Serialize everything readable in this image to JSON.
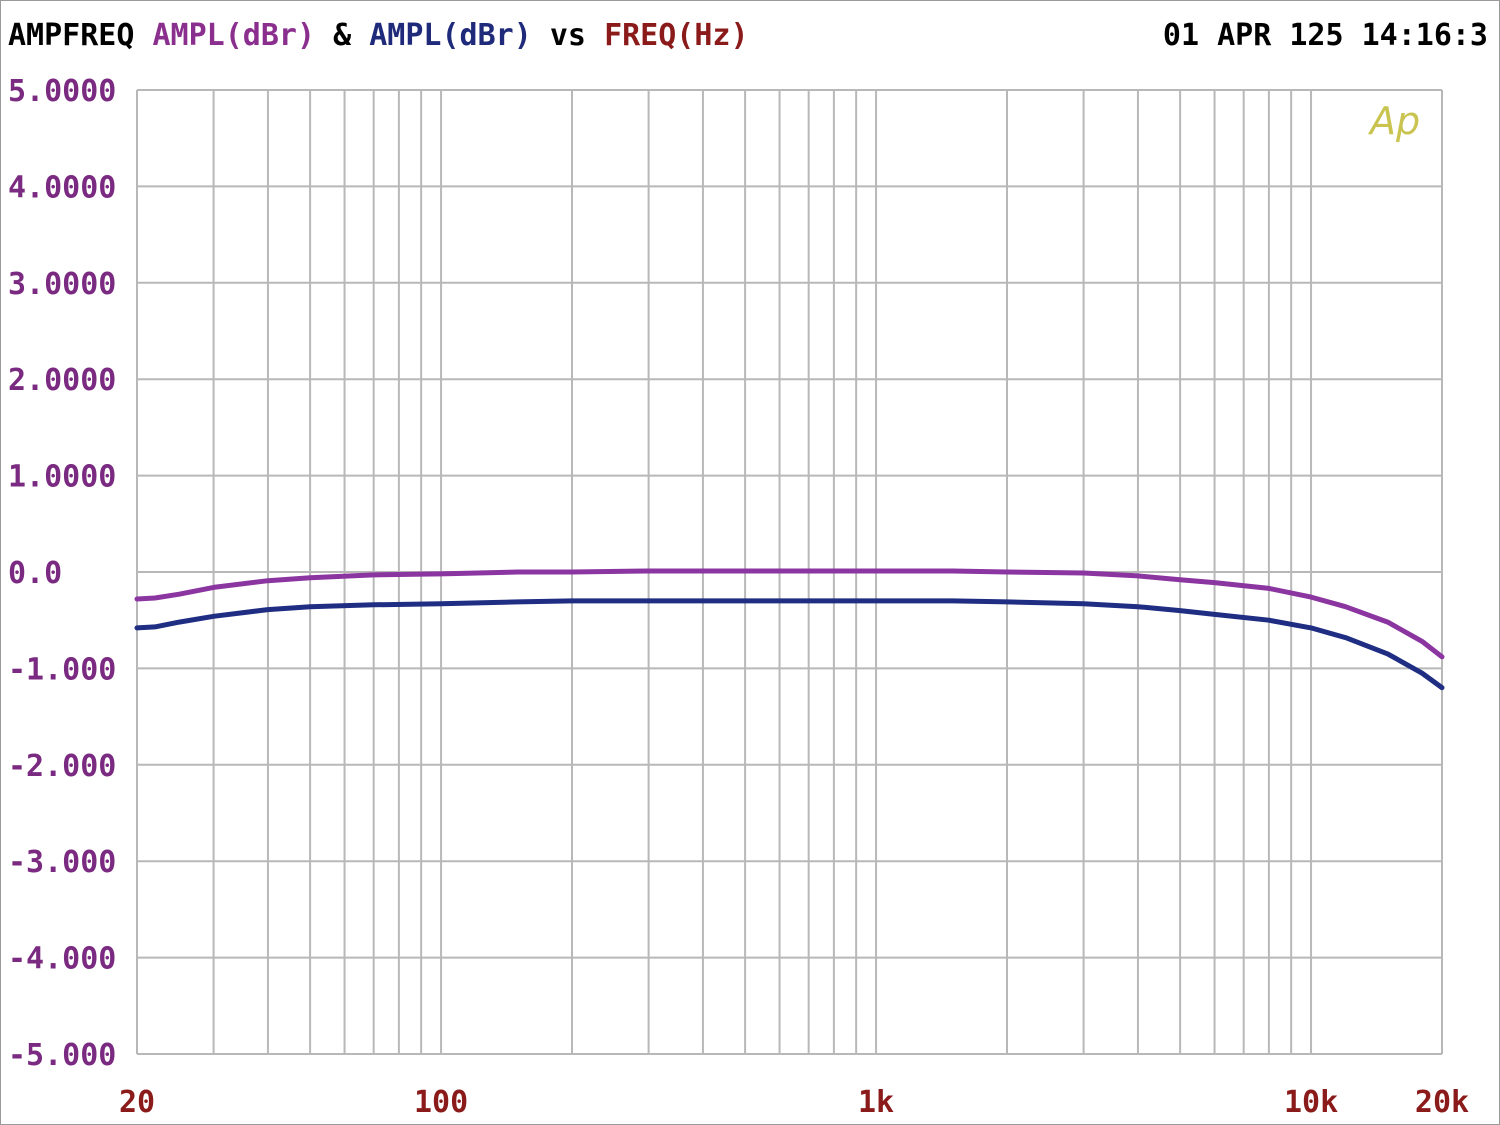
{
  "header": {
    "prefix": "AMPFREQ",
    "ylabel1": "AMPL(dBr)",
    "amp": "&",
    "ylabel2": "AMPL(dBr)",
    "vs": "vs",
    "xlabel": "FREQ(Hz)",
    "timestamp": "01 APR 125 14:16:3"
  },
  "logo": "Ap",
  "colors": {
    "text": "#000000",
    "ylabel1": "#8b2f8f",
    "ylabel2": "#1f2a7a",
    "xlabel": "#8b1a1a",
    "ytick": "#7a2a80",
    "xtick": "#8b1a1a",
    "grid": "#b8b8b8",
    "series1": "#8b35a0",
    "series2": "#1f2d82",
    "logo": "#c9c450"
  },
  "chart_data": {
    "type": "line",
    "xscale": "log",
    "xlim": [
      20,
      20000
    ],
    "ylim": [
      -5,
      5
    ],
    "grid": true,
    "yticks": [
      {
        "value": 5,
        "label": "5.0000"
      },
      {
        "value": 4,
        "label": "4.0000"
      },
      {
        "value": 3,
        "label": "3.0000"
      },
      {
        "value": 2,
        "label": "2.0000"
      },
      {
        "value": 1,
        "label": "1.0000"
      },
      {
        "value": 0,
        "label": "0.0"
      },
      {
        "value": -1,
        "label": "-1.000"
      },
      {
        "value": -2,
        "label": "-2.000"
      },
      {
        "value": -3,
        "label": "-3.000"
      },
      {
        "value": -4,
        "label": "-4.000"
      },
      {
        "value": -5,
        "label": "-5.000"
      }
    ],
    "xticks": [
      {
        "value": 20,
        "label": "20"
      },
      {
        "value": 100,
        "label": "100"
      },
      {
        "value": 1000,
        "label": "1k"
      },
      {
        "value": 10000,
        "label": "10k"
      },
      {
        "value": 20000,
        "label": "20k"
      }
    ],
    "series": [
      {
        "x": [
          20,
          22,
          25,
          30,
          40,
          50,
          70,
          100,
          150,
          200,
          300,
          500,
          700,
          1000,
          1500,
          2000,
          3000,
          4000,
          5000,
          6000,
          8000,
          10000,
          12000,
          15000,
          18000,
          20000
        ],
        "y": [
          -0.28,
          -0.27,
          -0.23,
          -0.16,
          -0.09,
          -0.06,
          -0.03,
          -0.02,
          0.0,
          0.0,
          0.01,
          0.01,
          0.01,
          0.01,
          0.01,
          0.0,
          -0.01,
          -0.04,
          -0.08,
          -0.11,
          -0.17,
          -0.26,
          -0.36,
          -0.52,
          -0.72,
          -0.88
        ]
      },
      {
        "x": [
          20,
          22,
          25,
          30,
          40,
          50,
          70,
          100,
          150,
          200,
          300,
          500,
          700,
          1000,
          1500,
          2000,
          3000,
          4000,
          5000,
          6000,
          8000,
          10000,
          12000,
          15000,
          18000,
          20000
        ],
        "y": [
          -0.58,
          -0.57,
          -0.52,
          -0.46,
          -0.39,
          -0.36,
          -0.34,
          -0.33,
          -0.31,
          -0.3,
          -0.3,
          -0.3,
          -0.3,
          -0.3,
          -0.3,
          -0.31,
          -0.33,
          -0.36,
          -0.4,
          -0.44,
          -0.5,
          -0.58,
          -0.68,
          -0.85,
          -1.05,
          -1.2
        ]
      }
    ]
  }
}
